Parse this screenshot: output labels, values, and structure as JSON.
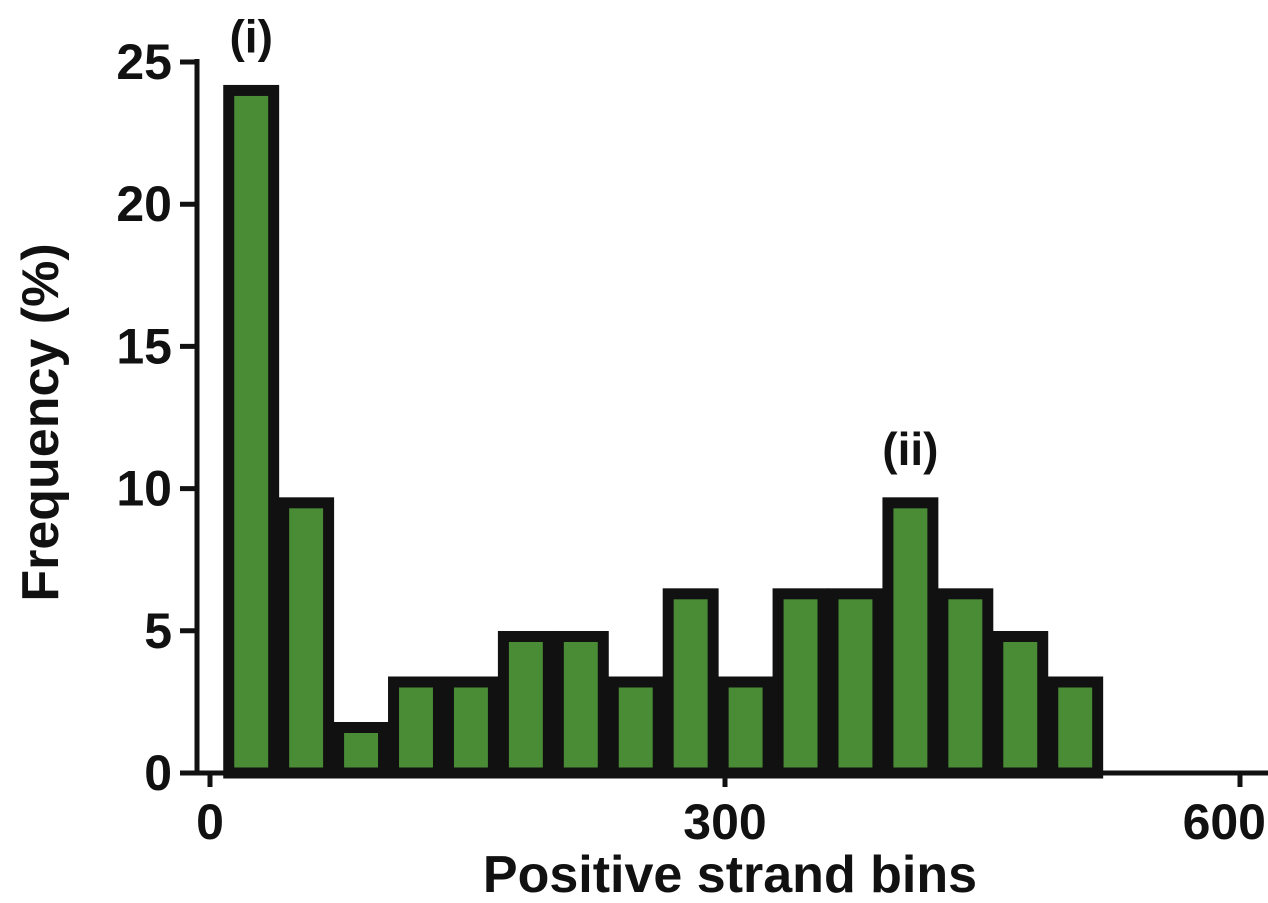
{
  "chart_data": {
    "type": "bar",
    "xlabel": "Positive strand bins",
    "ylabel": "Frequency (%)",
    "xlim": [
      0,
      600
    ],
    "ylim": [
      0,
      25
    ],
    "x_ticks": [
      0,
      300,
      600
    ],
    "y_ticks": [
      0,
      5,
      10,
      15,
      20,
      25
    ],
    "bin_width": 32,
    "bins": [
      {
        "start": 8,
        "value": 24.0
      },
      {
        "start": 40,
        "value": 9.5
      },
      {
        "start": 72,
        "value": 1.6
      },
      {
        "start": 104,
        "value": 3.2
      },
      {
        "start": 136,
        "value": 3.2
      },
      {
        "start": 168,
        "value": 4.8
      },
      {
        "start": 200,
        "value": 4.8
      },
      {
        "start": 232,
        "value": 3.2
      },
      {
        "start": 264,
        "value": 6.3
      },
      {
        "start": 296,
        "value": 3.2
      },
      {
        "start": 328,
        "value": 6.3
      },
      {
        "start": 360,
        "value": 6.3
      },
      {
        "start": 392,
        "value": 9.5
      },
      {
        "start": 424,
        "value": 6.3
      },
      {
        "start": 456,
        "value": 4.8
      },
      {
        "start": 488,
        "value": 3.2
      }
    ],
    "annotations": [
      {
        "label": "(i)",
        "bin_index": 0
      },
      {
        "label": "(ii)",
        "bin_index": 12
      }
    ],
    "grid": false,
    "colors": {
      "bar_fill": "#4a8c35",
      "bar_stroke": "#111111",
      "axis": "#111111"
    }
  }
}
